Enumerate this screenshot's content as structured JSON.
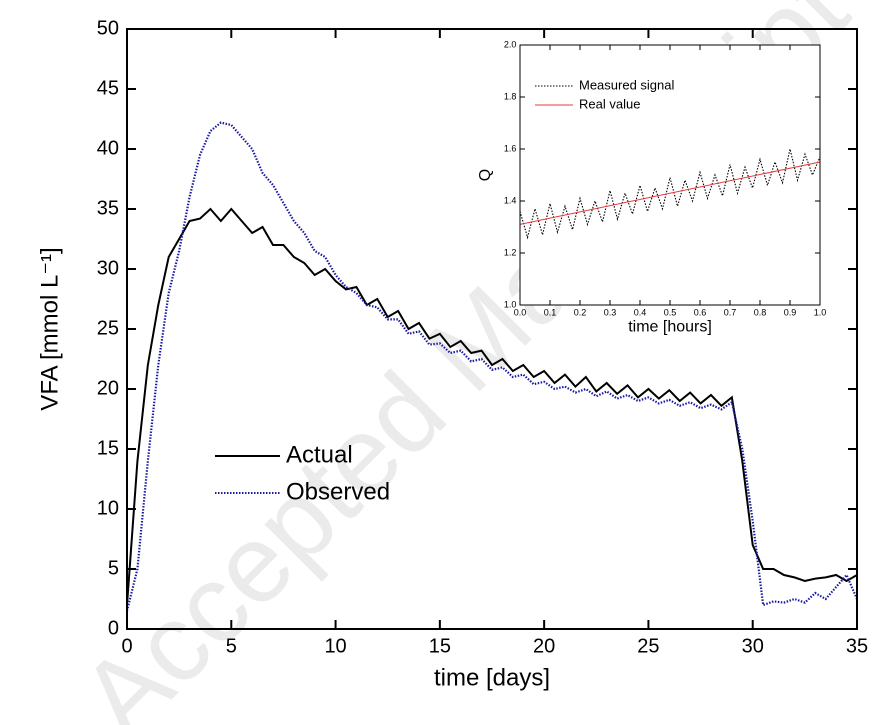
{
  "watermark": "Accepted Manuscript",
  "chart_data": [
    {
      "type": "line",
      "xlabel": "time [days]",
      "ylabel": "VFA [mmol L⁻¹]",
      "xlim": [
        0,
        35
      ],
      "xticks": [
        0,
        5,
        10,
        15,
        20,
        25,
        30,
        35
      ],
      "ylim": [
        0,
        50
      ],
      "yticks": [
        0,
        5,
        10,
        15,
        20,
        25,
        30,
        35,
        40,
        45,
        50
      ],
      "legend": "lower left",
      "x": [
        0,
        0.5,
        1,
        1.5,
        2,
        2.5,
        3,
        3.5,
        4,
        4.5,
        5,
        5.5,
        6,
        6.5,
        7,
        7.5,
        8,
        8.5,
        9,
        9.5,
        10,
        10.5,
        11,
        11.5,
        12,
        12.5,
        13,
        13.5,
        14,
        14.5,
        15,
        15.5,
        16,
        16.5,
        17,
        17.5,
        18,
        18.5,
        19,
        19.5,
        20,
        20.5,
        21,
        21.5,
        22,
        22.5,
        23,
        23.5,
        24,
        24.5,
        25,
        25.5,
        26,
        26.5,
        27,
        27.5,
        28,
        28.5,
        29,
        29.5,
        30,
        30.5,
        31,
        31.5,
        32,
        32.5,
        33,
        33.5,
        34,
        34.5,
        35
      ],
      "series": [
        {
          "name": "Actual",
          "color": "#000000",
          "style": "solid",
          "values": [
            2,
            14,
            22,
            27,
            31,
            32.5,
            34,
            34.2,
            35,
            34,
            35,
            34,
            33,
            33.5,
            32,
            32,
            31,
            30.5,
            29.5,
            30,
            29,
            28.3,
            28.5,
            27,
            27.5,
            26,
            26.5,
            25,
            25.5,
            24.2,
            24.6,
            23.5,
            24,
            23,
            23.2,
            22,
            22.5,
            21.5,
            22,
            21,
            21.5,
            20.5,
            21.2,
            20.2,
            21,
            19.8,
            20.5,
            19.6,
            20.3,
            19.3,
            20,
            19.2,
            19.9,
            19,
            19.7,
            18.8,
            19.5,
            18.6,
            19.3,
            14,
            7,
            5,
            5,
            4.5,
            4.3,
            4,
            4.2,
            4.3,
            4.5,
            4,
            4.5
          ]
        },
        {
          "name": "Observed",
          "color": "#1a1aa0",
          "style": "dotted",
          "values": [
            1.5,
            5,
            14,
            22,
            28,
            31.5,
            36,
            39.5,
            41.5,
            42.2,
            42,
            41,
            40,
            38,
            37,
            35.5,
            34,
            33,
            31.5,
            31,
            29.5,
            28.5,
            28,
            27,
            26.8,
            25.8,
            25.8,
            24.6,
            24.8,
            23.7,
            23.8,
            23,
            23.2,
            22.3,
            22.5,
            21.6,
            21.8,
            21,
            21.2,
            20.4,
            20.6,
            20,
            20.2,
            19.7,
            20,
            19.4,
            19.8,
            19.2,
            19.5,
            19,
            19.3,
            18.8,
            19.1,
            18.6,
            18.9,
            18.4,
            18.7,
            18.3,
            18.9,
            15,
            9,
            2,
            2.3,
            2.2,
            2.5,
            2.2,
            3,
            2.5,
            3.5,
            4.5,
            2.5
          ]
        }
      ]
    },
    {
      "type": "line",
      "xlabel": "time [hours]",
      "ylabel": "Q",
      "xlim": [
        0,
        1
      ],
      "xticks": [
        {
          "value": 0,
          "label": "0.0"
        },
        0.1,
        0.2,
        0.3,
        0.4,
        0.5,
        0.6,
        0.7,
        0.8,
        0.9,
        {
          "value": 1,
          "label": "1.0"
        }
      ],
      "ylim": [
        1,
        2
      ],
      "yticks": [
        {
          "value": 1,
          "label": "1.0"
        },
        1.2,
        1.4,
        1.6,
        1.8,
        {
          "value": 2,
          "label": "2.0"
        }
      ],
      "legend": "upper left",
      "series": [
        {
          "name": "Measured signal",
          "color": "#000000",
          "style": "dotted",
          "x": [
            0,
            0.025,
            0.05,
            0.075,
            0.1,
            0.125,
            0.15,
            0.175,
            0.2,
            0.225,
            0.25,
            0.275,
            0.3,
            0.325,
            0.35,
            0.375,
            0.4,
            0.425,
            0.45,
            0.475,
            0.5,
            0.525,
            0.55,
            0.575,
            0.6,
            0.625,
            0.65,
            0.675,
            0.7,
            0.725,
            0.75,
            0.775,
            0.8,
            0.825,
            0.85,
            0.875,
            0.9,
            0.925,
            0.95,
            0.975,
            1
          ],
          "values": [
            1.36,
            1.26,
            1.37,
            1.27,
            1.39,
            1.28,
            1.38,
            1.29,
            1.41,
            1.31,
            1.4,
            1.32,
            1.44,
            1.33,
            1.43,
            1.35,
            1.46,
            1.36,
            1.45,
            1.37,
            1.49,
            1.38,
            1.48,
            1.4,
            1.51,
            1.41,
            1.5,
            1.42,
            1.54,
            1.43,
            1.53,
            1.45,
            1.56,
            1.46,
            1.55,
            1.47,
            1.6,
            1.48,
            1.58,
            1.5,
            1.57
          ]
        },
        {
          "name": "Real value",
          "color": "#e8383d",
          "style": "solid",
          "x": [
            0,
            1
          ],
          "values": [
            1.31,
            1.55
          ]
        }
      ]
    }
  ]
}
